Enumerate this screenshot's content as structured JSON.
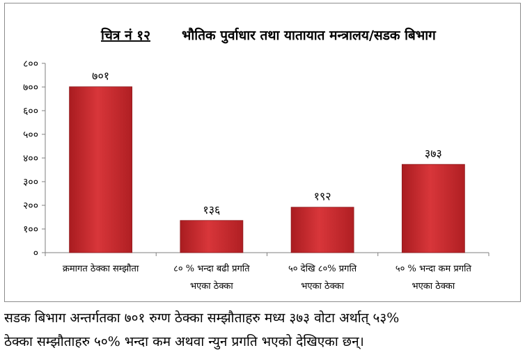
{
  "chart_data": {
    "type": "bar",
    "title_label": "चित्र नं १२",
    "title": "भौतिक पुर्वाधार तथा यातायात मन्त्रालय/सडक बिभाग",
    "xlabel": "",
    "ylabel": "",
    "ylim": [
      0,
      800
    ],
    "yticks": [
      0,
      100,
      200,
      300,
      400,
      500,
      600,
      700,
      800
    ],
    "ytick_labels": [
      "०",
      "१००",
      "२००",
      "३००",
      "४००",
      "५००",
      "६००",
      "७००",
      "८००"
    ],
    "grid": false,
    "legend": "none",
    "bar_color": "#c8262b",
    "categories": [
      [
        "क्रमागत ठेक्का सम्झौता"
      ],
      [
        "८० % भन्दा बढी प्रगति",
        "भएका ठेक्का"
      ],
      [
        "५० देखि ८०%  प्रगति",
        "भएका ठेक्का"
      ],
      [
        "५० % भन्दा कम प्रगति",
        "भएका ठेक्का"
      ]
    ],
    "values": [
      701,
      136,
      192,
      373
    ],
    "value_labels": [
      "७०१",
      "१३६",
      "१९२",
      "३७३"
    ]
  },
  "caption": {
    "line1": "सडक बिभाग अन्तर्गतका ७०१ रुग्ण ठेक्का सम्झौताहरु मध्य ३७३ वोटा अर्थात् ५३%",
    "line2": "ठेक्का सम्झौताहरु ५०% भन्दा कम अथवा न्युन प्रगति भएको देखिएका छन्।"
  }
}
